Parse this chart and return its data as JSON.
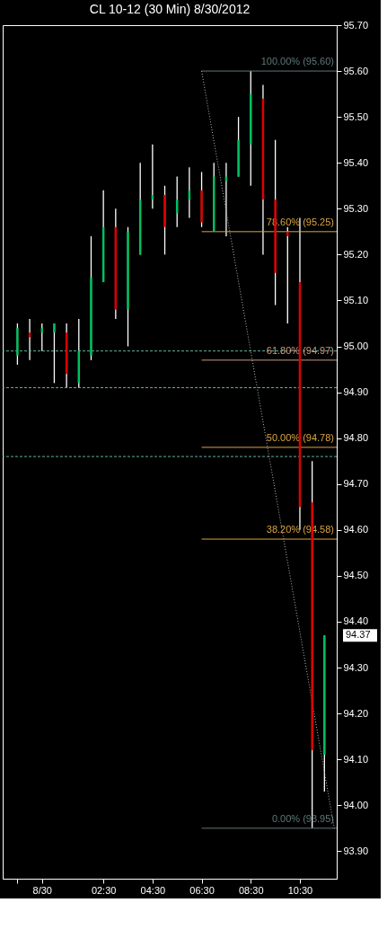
{
  "chart_data": {
    "type": "candlestick",
    "title": "CL 10-12 (30 Min)  8/30/2012",
    "x": [
      -1,
      -0.5,
      0,
      0.5,
      1,
      1.5,
      2,
      2.5,
      3,
      3.5,
      4,
      4.5,
      5,
      5.5,
      6,
      6.5,
      7,
      7.5,
      8,
      8.5,
      9,
      9.5,
      10,
      10.5,
      11,
      11.5
    ],
    "ohlc": [
      [
        94.98,
        95.05,
        94.96,
        95.04
      ],
      [
        95.03,
        95.06,
        94.97,
        95.02
      ],
      [
        95.03,
        95.05,
        94.99,
        95.04
      ],
      [
        95.03,
        95.05,
        94.92,
        95.05
      ],
      [
        95.03,
        95.05,
        94.91,
        94.94
      ],
      [
        94.92,
        95.06,
        94.91,
        94.99
      ],
      [
        94.98,
        95.24,
        94.97,
        95.15
      ],
      [
        95.14,
        95.34,
        95.14,
        95.26
      ],
      [
        95.26,
        95.3,
        95.06,
        95.08
      ],
      [
        95.08,
        95.26,
        95.0,
        95.25
      ],
      [
        95.2,
        95.4,
        95.2,
        95.32
      ],
      [
        95.32,
        95.44,
        95.3,
        95.33
      ],
      [
        95.33,
        95.35,
        95.2,
        95.26
      ],
      [
        95.29,
        95.37,
        95.26,
        95.32
      ],
      [
        95.32,
        95.39,
        95.28,
        95.34
      ],
      [
        95.34,
        95.38,
        95.26,
        95.27
      ],
      [
        95.25,
        95.4,
        95.25,
        95.37
      ],
      [
        95.36,
        95.4,
        95.24,
        95.37
      ],
      [
        95.37,
        95.5,
        95.37,
        95.45
      ],
      [
        95.44,
        95.6,
        95.35,
        95.55
      ],
      [
        95.54,
        95.57,
        95.2,
        95.32
      ],
      [
        95.32,
        95.45,
        95.09,
        95.16
      ],
      [
        95.25,
        95.26,
        95.05,
        95.24
      ],
      [
        95.14,
        95.28,
        94.6,
        94.65
      ],
      [
        94.66,
        94.75,
        93.95,
        94.12
      ],
      [
        94.11,
        94.37,
        94.03,
        94.37
      ]
    ],
    "colors": [
      "#00c060",
      "#e00000",
      "#00c060",
      "#00c060",
      "#e00000",
      "#00c060",
      "#00c060",
      "#00c060",
      "#e00000",
      "#00c060",
      "#00c060",
      "#00c060",
      "#e00000",
      "#00c060",
      "#00c060",
      "#e00000",
      "#00c060",
      "#00c060",
      "#00c060",
      "#00c060",
      "#e00000",
      "#e00000",
      "#e00000",
      "#e00000",
      "#e00000",
      "#00c060"
    ],
    "series": [
      {
        "type": "line",
        "name": "100.00% (95.60)",
        "color": "#5f7878",
        "x": [
          6.5,
          12.0
        ],
        "values": [
          95.6,
          95.6
        ]
      },
      {
        "type": "line",
        "name": "78.60% (95.25)",
        "color": "#d9a441",
        "x": [
          6.5,
          12.0
        ],
        "values": [
          95.25,
          95.25
        ]
      },
      {
        "type": "line",
        "name": "61.80% (94.97)",
        "color": "#c89a80",
        "x": [
          6.5,
          12.0
        ],
        "values": [
          94.97,
          94.97
        ]
      },
      {
        "type": "line",
        "name": "50.00% (94.78)",
        "color": "#d9a441",
        "x": [
          6.5,
          12.0
        ],
        "values": [
          94.78,
          94.78
        ]
      },
      {
        "type": "line",
        "name": "38.20% (94.58)",
        "color": "#d9a441",
        "x": [
          6.5,
          12.0
        ],
        "values": [
          94.58,
          94.58
        ]
      },
      {
        "type": "line",
        "name": "0.00% (93.95)",
        "color": "#5f7878",
        "x": [
          6.5,
          12.0
        ],
        "values": [
          93.95,
          93.95
        ]
      },
      {
        "type": "line",
        "color": "#bbbbbb",
        "line_style": "dotted",
        "x": [
          6.5,
          11.9
        ],
        "values": [
          95.6,
          93.95
        ]
      }
    ],
    "ref_lines": [
      {
        "axis": "y",
        "value": 94.99,
        "color": "#5fb0a0",
        "line_style": "dashed"
      },
      {
        "axis": "y",
        "value": 94.91,
        "color": "#5fb0a0",
        "line_style": "dashed"
      },
      {
        "axis": "y",
        "value": 94.76,
        "color": "#5fb0a0",
        "line_style": "dashed"
      }
    ],
    "annotations": [
      "94.37"
    ],
    "xlim": [
      -1.6,
      12.0
    ],
    "xticks": [
      {
        "value": -1,
        "label": null
      },
      {
        "value": 0,
        "label": "8/30"
      },
      {
        "value": 2.5,
        "label": "02:30"
      },
      {
        "value": 4.5,
        "label": "04:30"
      },
      {
        "value": 6.5,
        "label": "06:30"
      },
      {
        "value": 8.5,
        "label": "08:30"
      },
      {
        "value": 10.5,
        "label": "10:30"
      }
    ],
    "ylim": [
      93.84,
      95.7
    ],
    "yticks": [
      {
        "value": 93.9,
        "label": "93.90"
      },
      {
        "value": 94.0,
        "label": "94.00"
      },
      {
        "value": 94.1,
        "label": "94.10"
      },
      {
        "value": 94.2,
        "label": "94.20"
      },
      {
        "value": 94.3,
        "label": "94.30"
      },
      {
        "value": 94.4,
        "label": "94.40"
      },
      {
        "value": 94.5,
        "label": "94.50"
      },
      {
        "value": 94.6,
        "label": "94.60"
      },
      {
        "value": 94.7,
        "label": "94.70"
      },
      {
        "value": 94.8,
        "label": "94.80"
      },
      {
        "value": 94.9,
        "label": "94.90"
      },
      {
        "value": 95.0,
        "label": "95.00"
      },
      {
        "value": 95.1,
        "label": "95.10"
      },
      {
        "value": 95.2,
        "label": "95.20"
      },
      {
        "value": 95.3,
        "label": "95.30"
      },
      {
        "value": 95.4,
        "label": "95.40"
      },
      {
        "value": 95.5,
        "label": "95.50"
      },
      {
        "value": 95.6,
        "label": "95.60"
      },
      {
        "value": 95.7,
        "label": "95.70"
      }
    ],
    "grid": false
  }
}
